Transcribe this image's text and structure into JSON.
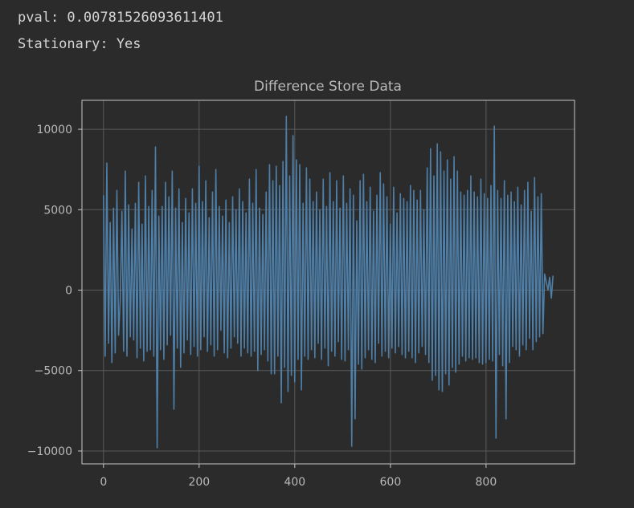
{
  "output": {
    "pval_line": "pval: 0.00781526093611401",
    "stationary_line": "Stationary: Yes"
  },
  "colors": {
    "background": "#2b2b2b",
    "axes_frame": "#c7c7c7",
    "grid": "#5a5a5a",
    "series": "#4e7fa8",
    "text": "#b9b9b9"
  },
  "chart_data": {
    "type": "line",
    "title": "Difference Store Data",
    "xlabel": "",
    "ylabel": "",
    "xlim": [
      -45,
      985
    ],
    "ylim": [
      -10800,
      11800
    ],
    "xticks": [
      0,
      200,
      400,
      600,
      800
    ],
    "xtick_labels": [
      "0",
      "200",
      "400",
      "600",
      "800"
    ],
    "yticks": [
      -10000,
      -5000,
      0,
      5000,
      10000
    ],
    "ytick_labels": [
      "−10000",
      "−5000",
      "0",
      "5000",
      "10000"
    ],
    "grid": true,
    "series": [
      {
        "name": "",
        "x_start": 0,
        "x_step": 1,
        "values": [
          5900,
          -4100,
          7900,
          -3300,
          4200,
          -4500,
          5100,
          -3900,
          6200,
          -2800,
          -600,
          4900,
          -3800,
          7400,
          -4100,
          5300,
          -2900,
          3800,
          -3100,
          5400,
          -4200,
          6700,
          -3600,
          4100,
          -4400,
          7100,
          -3800,
          5200,
          -3700,
          6200,
          -4100,
          8900,
          -9800,
          4600,
          -3700,
          5200,
          -4300,
          6700,
          -3400,
          5800,
          -2800,
          7400,
          -7400,
          5100,
          -3600,
          6300,
          -4800,
          4200,
          -3900,
          5700,
          -3100,
          4800,
          -4000,
          6300,
          -3500,
          5400,
          -4100,
          7700,
          -3700,
          5500,
          -2900,
          6800,
          -3800,
          4500,
          -3400,
          6100,
          -4100,
          7500,
          -3700,
          5200,
          -2500,
          4600,
          -3900,
          5600,
          -4200,
          4200,
          -3600,
          5800,
          -2900,
          5000,
          -3300,
          6300,
          -4100,
          5500,
          -3600,
          4800,
          -3900,
          6900,
          -4100,
          5400,
          -3800,
          7500,
          -5000,
          5100,
          -4000,
          4700,
          -3700,
          6100,
          -4400,
          7800,
          -5200,
          6800,
          -5200,
          7700,
          -4100,
          6500,
          -7000,
          8000,
          -4800,
          10800,
          -6300,
          7100,
          -5300,
          9600,
          -5700,
          8100,
          -4300,
          7800,
          -6200,
          5400,
          -4100,
          7600,
          -4300,
          6900,
          -3700,
          5500,
          -4200,
          6100,
          -3300,
          5000,
          -4300,
          6900,
          -3600,
          5200,
          -4700,
          7300,
          -3800,
          5500,
          -4100,
          6800,
          -3200,
          5100,
          -4300,
          7100,
          -4400,
          5400,
          -3700,
          6300,
          -9700,
          5900,
          -8000,
          4300,
          -4600,
          6800,
          -4900,
          7200,
          -4200,
          5500,
          -3700,
          6400,
          -4300,
          4900,
          -4500,
          5900,
          -3300,
          7300,
          -4100,
          6600,
          -3800,
          5800,
          -4200,
          4100,
          -3600,
          6400,
          -3900,
          4800,
          -3500,
          6000,
          -4000,
          5700,
          -4200,
          5500,
          -3800,
          6500,
          -4200,
          6200,
          -4500,
          5600,
          -3900,
          6200,
          -3500,
          5000,
          -4000,
          7600,
          -4500,
          8800,
          -5600,
          7100,
          -5300,
          9100,
          -6200,
          8600,
          -6300,
          7400,
          -5200,
          8100,
          -5900,
          6900,
          -4800,
          8300,
          -5100,
          7400,
          -4600,
          6100,
          -4100,
          5900,
          -4400,
          6200,
          -4200,
          7100,
          -4300,
          6100,
          -4200,
          5800,
          -4500,
          6900,
          -4600,
          6000,
          -4500,
          5700,
          -4300,
          6500,
          -4400,
          10200,
          -9200,
          6200,
          -4000,
          5700,
          -4700,
          6800,
          -8000,
          5900,
          -4500,
          6100,
          -3500,
          5500,
          -3700,
          6400,
          -4100,
          5300,
          -3400,
          6200,
          -3700,
          6700,
          -3000,
          4900,
          -3700,
          7000,
          -3200,
          5800,
          -2900,
          6000,
          -2700,
          1000,
          500,
          0,
          800,
          -500,
          900
        ]
      }
    ]
  }
}
